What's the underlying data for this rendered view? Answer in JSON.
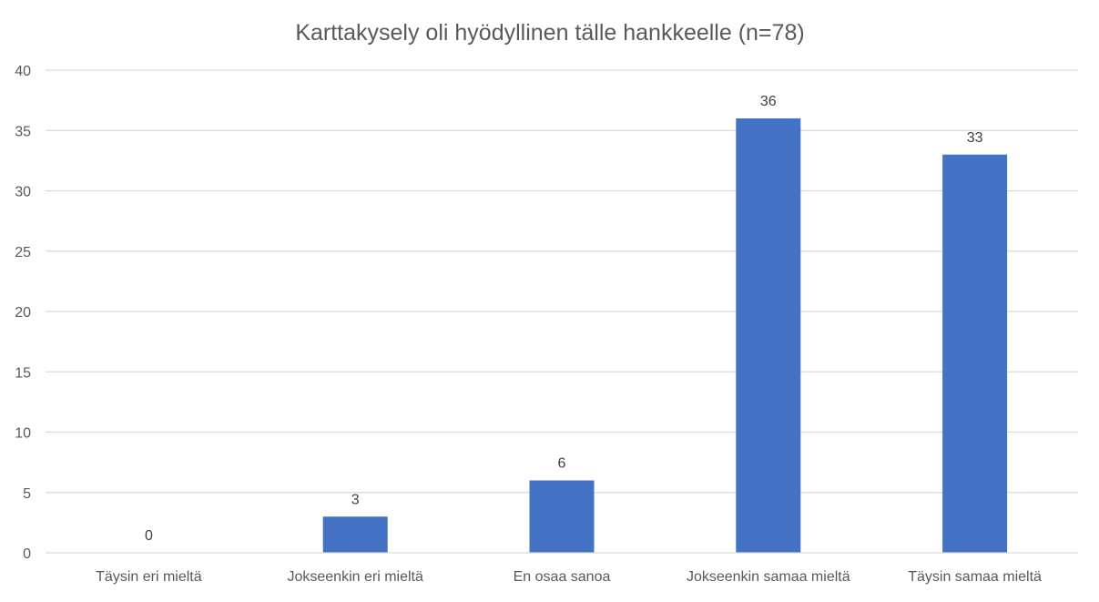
{
  "chart_data": {
    "type": "bar",
    "title": "Karttakysely oli hyödyllinen tälle hankkeelle (n=78)",
    "categories": [
      "Täysin eri mieltä",
      "Jokseenkin eri mieltä",
      "En osaa sanoa",
      "Jokseenkin samaa mieltä",
      "Täysin samaa mieltä"
    ],
    "values": [
      0,
      3,
      6,
      36,
      33
    ],
    "data_labels": [
      "0",
      "3",
      "6",
      "36",
      "33"
    ],
    "ylim": [
      0,
      40
    ],
    "yticks": [
      0,
      5,
      10,
      15,
      20,
      25,
      30,
      35,
      40
    ],
    "ytick_labels": [
      "0",
      "5",
      "10",
      "15",
      "20",
      "25",
      "30",
      "35",
      "40"
    ],
    "xlabel": "",
    "ylabel": "",
    "grid": true,
    "legend": "none",
    "colors": {
      "bar": "#4472C4",
      "grid": "#D9D9D9",
      "text": "#595959",
      "title": "#595959",
      "data_label": "#404040"
    }
  }
}
